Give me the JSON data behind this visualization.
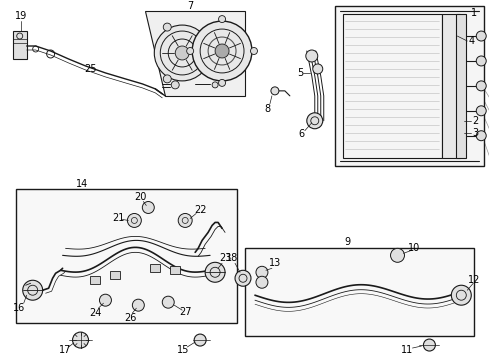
{
  "bg_color": "#ffffff",
  "line_color": "#1a1a1a",
  "label_color": "#000000",
  "fig_width": 4.9,
  "fig_height": 3.6,
  "dpi": 100,
  "font_size": 7.0
}
